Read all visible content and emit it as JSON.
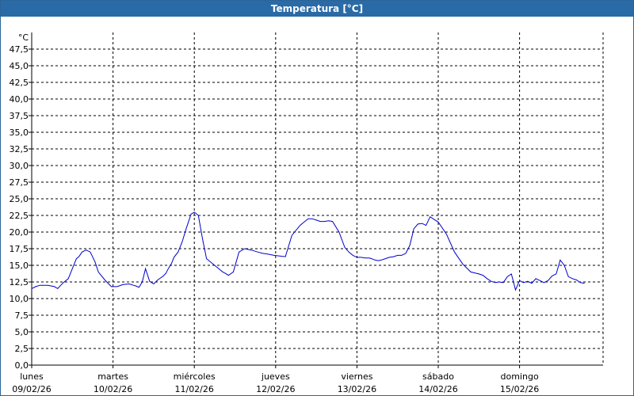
{
  "window": {
    "title": "Temperatura [°C]"
  },
  "chart_data": {
    "type": "line",
    "title": "Temperatura [°C]",
    "ylabel": "°C",
    "ylim": [
      0,
      50
    ],
    "y_ticks": [
      "0,0",
      "2,5",
      "5,0",
      "7,5",
      "10,0",
      "12,5",
      "15,0",
      "17,5",
      "20,0",
      "22,5",
      "25,0",
      "27,5",
      "30,0",
      "32,5",
      "35,0",
      "37,5",
      "40,0",
      "42,5",
      "45,0",
      "47,5"
    ],
    "xlim": [
      0,
      7.15
    ],
    "days": [
      {
        "name": "lunes",
        "date": "09/02/26"
      },
      {
        "name": "martes",
        "date": "10/02/26"
      },
      {
        "name": "miércoles",
        "date": "11/02/26"
      },
      {
        "name": "jueves",
        "date": "12/02/26"
      },
      {
        "name": "viernes",
        "date": "13/02/26"
      },
      {
        "name": "sábado",
        "date": "14/02/26"
      },
      {
        "name": "domingo",
        "date": "15/02/26"
      }
    ],
    "grid": true,
    "line_color": "#0000cc",
    "series": [
      {
        "x": [
          0.0,
          0.05,
          0.1,
          0.2,
          0.28,
          0.32,
          0.38,
          0.45,
          0.5,
          0.55,
          0.58,
          0.62,
          0.67,
          0.72,
          0.78,
          0.82,
          0.9,
          0.98,
          1.05,
          1.12,
          1.2,
          1.25,
          1.28,
          1.32,
          1.36,
          1.4,
          1.45,
          1.5,
          1.55,
          1.62,
          1.65,
          1.68,
          1.72,
          1.75,
          1.8,
          1.85,
          1.9,
          1.96,
          2.0,
          2.05,
          2.1,
          2.15,
          2.3,
          2.35,
          2.38,
          2.42,
          2.48,
          2.55,
          2.62,
          2.7,
          2.78,
          2.84,
          2.9,
          2.98,
          3.05,
          3.12,
          3.2,
          3.3,
          3.35,
          3.4,
          3.45,
          3.5,
          3.55,
          3.6,
          3.65,
          3.7,
          3.78,
          3.85,
          3.9,
          3.95,
          4.0,
          4.05,
          4.1,
          4.15,
          4.18,
          4.22,
          4.26,
          4.3,
          4.35,
          4.4,
          4.45,
          4.5,
          4.55,
          4.6,
          4.65,
          4.7,
          4.75,
          4.8,
          4.85,
          4.9,
          5.0,
          5.1,
          5.2,
          5.3,
          5.4,
          5.5,
          5.55,
          5.6,
          5.65,
          5.7,
          5.75,
          5.8,
          5.85,
          5.9,
          5.95,
          6.0,
          6.05,
          6.1,
          6.15,
          6.2,
          6.25,
          6.3,
          6.35,
          6.4,
          6.45,
          6.5,
          6.55,
          6.6,
          6.65,
          6.7,
          6.75,
          6.8
        ],
        "y": [
          11.5,
          11.8,
          12.0,
          12.0,
          11.8,
          11.5,
          12.3,
          13.0,
          14.5,
          16.0,
          16.3,
          17.0,
          17.3,
          17.0,
          15.5,
          14.0,
          12.8,
          11.8,
          11.8,
          12.1,
          12.2,
          12.0,
          11.9,
          11.7,
          12.5,
          14.5,
          12.6,
          12.2,
          12.8,
          13.4,
          13.8,
          14.5,
          15.3,
          16.2,
          17.0,
          18.5,
          20.5,
          22.7,
          23.0,
          22.5,
          19.0,
          16.0,
          14.5,
          14.0,
          13.8,
          13.5,
          14.0,
          17.0,
          17.5,
          17.3,
          17.0,
          16.8,
          16.7,
          16.5,
          16.4,
          16.3,
          19.5,
          21.0,
          21.5,
          22.0,
          22.0,
          21.8,
          21.6,
          21.6,
          21.7,
          21.6,
          20.0,
          17.7,
          17.0,
          16.5,
          16.2,
          16.2,
          16.1,
          16.1,
          16.0,
          15.8,
          15.7,
          15.8,
          16.0,
          16.2,
          16.3,
          16.5,
          16.5,
          16.8,
          18.0,
          20.5,
          21.2,
          21.3,
          21.0,
          22.3,
          21.5,
          19.7,
          17.0,
          15.2,
          14.0,
          13.7,
          13.5,
          13.0,
          12.6,
          12.4,
          12.5,
          12.4,
          13.3,
          13.7,
          11.3,
          12.7,
          12.4,
          12.6,
          12.3,
          13.0,
          12.7,
          12.4,
          12.7,
          13.4,
          13.7,
          15.8,
          15.0,
          13.3,
          13.0,
          12.8,
          12.4,
          12.3
        ],
        "comment": "values read approximately from the plot"
      }
    ]
  }
}
